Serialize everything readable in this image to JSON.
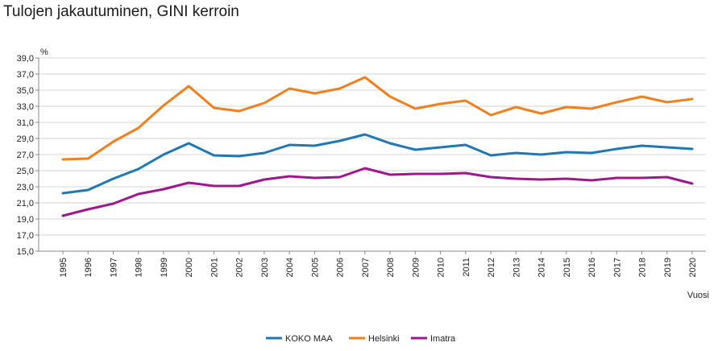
{
  "chart_data": {
    "type": "line",
    "title": "Tulojen jakautuminen, GINI kerroin",
    "ylabel": "%",
    "xlabel": "Vuosi",
    "ylim": [
      15.0,
      39.0
    ],
    "ytick_step": 2,
    "y_ticks": [
      "39,0",
      "37,0",
      "35,0",
      "33,0",
      "31,0",
      "29,0",
      "27,0",
      "25,0",
      "23,0",
      "21,0",
      "19,0",
      "17,0",
      "15,0"
    ],
    "grid": true,
    "legend_position": "bottom",
    "categories": [
      "1995",
      "1996",
      "1997",
      "1998",
      "1999",
      "2000",
      "2001",
      "2002",
      "2003",
      "2004",
      "2005",
      "2006",
      "2007",
      "2008",
      "2009",
      "2010",
      "2011",
      "2012",
      "2013",
      "2014",
      "2015",
      "2016",
      "2017",
      "2018",
      "2019",
      "2020"
    ],
    "series": [
      {
        "name": "KOKO MAA",
        "color": "#1f77b4",
        "values": [
          22.2,
          22.6,
          24.0,
          25.2,
          27.0,
          28.4,
          26.9,
          26.8,
          27.2,
          28.2,
          28.1,
          28.7,
          29.5,
          28.4,
          27.6,
          27.9,
          28.2,
          26.9,
          27.2,
          27.0,
          27.3,
          27.2,
          27.7,
          28.1,
          27.9,
          27.7
        ]
      },
      {
        "name": "Helsinki",
        "color": "#f07f1e",
        "values": [
          26.4,
          26.5,
          28.6,
          30.3,
          33.1,
          35.5,
          32.8,
          32.4,
          33.4,
          35.2,
          34.6,
          35.2,
          36.6,
          34.2,
          32.7,
          33.3,
          33.7,
          31.9,
          32.9,
          32.1,
          32.9,
          32.7,
          33.5,
          34.2,
          33.5,
          33.9
        ]
      },
      {
        "name": "Imatra",
        "color": "#a0168c",
        "values": [
          19.4,
          20.2,
          20.9,
          22.1,
          22.7,
          23.5,
          23.1,
          23.1,
          23.9,
          24.3,
          24.1,
          24.2,
          25.3,
          24.5,
          24.6,
          24.6,
          24.7,
          24.2,
          24.0,
          23.9,
          24.0,
          23.8,
          24.1,
          24.1,
          24.2,
          23.4
        ]
      }
    ]
  }
}
